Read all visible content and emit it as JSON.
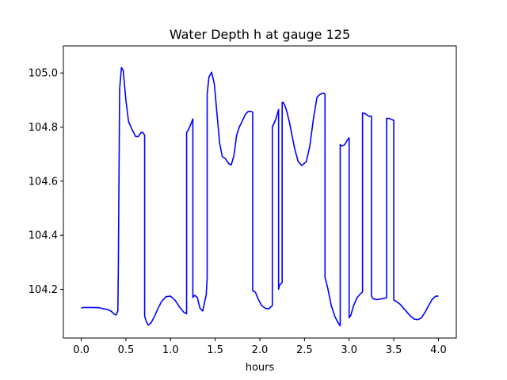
{
  "chart_data": {
    "type": "line",
    "title": "Water Depth h at gauge 125",
    "xlabel": "hours",
    "ylabel": "",
    "xlim": [
      -0.2,
      4.2
    ],
    "ylim": [
      104.02,
      105.1
    ],
    "xticks": [
      0.0,
      0.5,
      1.0,
      1.5,
      2.0,
      2.5,
      3.0,
      3.5,
      4.0
    ],
    "xtick_labels": [
      "0.0",
      "0.5",
      "1.0",
      "1.5",
      "2.0",
      "2.5",
      "3.0",
      "3.5",
      "4.0"
    ],
    "yticks": [
      104.2,
      104.4,
      104.6,
      104.8,
      105.0
    ],
    "ytick_labels": [
      "104.2",
      "104.4",
      "104.6",
      "104.8",
      "105.0"
    ],
    "grid": false,
    "series": [
      {
        "color": "#0000ff",
        "x": [
          0.0,
          0.02,
          0.1,
          0.2,
          0.3,
          0.34,
          0.37,
          0.39,
          0.41,
          0.415,
          0.43,
          0.45,
          0.47,
          0.5,
          0.53,
          0.57,
          0.61,
          0.64,
          0.67,
          0.69,
          0.71,
          0.71,
          0.73,
          0.75,
          0.78,
          0.82,
          0.86,
          0.9,
          0.95,
          1.0,
          1.05,
          1.1,
          1.15,
          1.18,
          1.18,
          1.2,
          1.22,
          1.25,
          1.25,
          1.27,
          1.3,
          1.33,
          1.36,
          1.4,
          1.41,
          1.41,
          1.43,
          1.46,
          1.49,
          1.52,
          1.55,
          1.58,
          1.61,
          1.65,
          1.68,
          1.71,
          1.74,
          1.77,
          1.8,
          1.84,
          1.87,
          1.9,
          1.92,
          1.92,
          1.95,
          1.98,
          2.02,
          2.06,
          2.1,
          2.14,
          2.14,
          2.18,
          2.21,
          2.21,
          2.22,
          2.25,
          2.25,
          2.26,
          2.28,
          2.3,
          2.33,
          2.36,
          2.39,
          2.43,
          2.47,
          2.52,
          2.56,
          2.6,
          2.64,
          2.67,
          2.7,
          2.72,
          2.73,
          2.73,
          2.76,
          2.8,
          2.84,
          2.87,
          2.9,
          2.9,
          2.92,
          2.95,
          2.98,
          3.0,
          3.0,
          3.02,
          3.05,
          3.09,
          3.13,
          3.15,
          3.15,
          3.18,
          3.22,
          3.25,
          3.25,
          3.27,
          3.31,
          3.36,
          3.4,
          3.42,
          3.42,
          3.45,
          3.49,
          3.5,
          3.5,
          3.53,
          3.57,
          3.61,
          3.65,
          3.69,
          3.73,
          3.77,
          3.81,
          3.85,
          3.89,
          3.93,
          3.97,
          4.0
        ],
        "y": [
          104.13,
          104.133,
          104.133,
          104.132,
          104.125,
          104.118,
          104.108,
          104.105,
          104.12,
          104.26,
          104.94,
          105.02,
          105.01,
          104.9,
          104.82,
          104.79,
          104.765,
          104.765,
          104.78,
          104.78,
          104.77,
          104.1,
          104.08,
          104.068,
          104.075,
          104.1,
          104.13,
          104.155,
          104.173,
          104.175,
          104.16,
          104.135,
          104.115,
          104.11,
          104.78,
          104.79,
          104.805,
          104.83,
          104.17,
          104.178,
          104.17,
          104.13,
          104.12,
          104.18,
          104.24,
          104.92,
          104.985,
          105.003,
          104.96,
          104.85,
          104.74,
          104.69,
          104.685,
          104.665,
          104.66,
          104.695,
          104.77,
          104.8,
          104.82,
          104.848,
          104.858,
          104.858,
          104.855,
          104.195,
          104.19,
          104.165,
          104.14,
          104.13,
          104.128,
          104.14,
          104.8,
          104.83,
          104.865,
          104.2,
          104.215,
          104.225,
          104.89,
          104.892,
          104.88,
          104.86,
          104.82,
          104.77,
          104.72,
          104.672,
          104.658,
          104.672,
          104.73,
          104.83,
          104.91,
          104.92,
          104.925,
          104.925,
          104.92,
          104.245,
          104.205,
          104.14,
          104.1,
          104.08,
          104.065,
          104.735,
          104.73,
          104.735,
          104.752,
          104.76,
          104.095,
          104.105,
          104.14,
          104.17,
          104.185,
          104.19,
          104.852,
          104.85,
          104.84,
          104.84,
          104.175,
          104.165,
          104.162,
          104.165,
          104.167,
          104.17,
          104.832,
          104.832,
          104.826,
          104.826,
          104.16,
          104.155,
          104.145,
          104.13,
          104.115,
          104.1,
          104.09,
          104.088,
          104.095,
          104.115,
          104.14,
          104.163,
          104.175,
          104.175
        ]
      }
    ]
  }
}
